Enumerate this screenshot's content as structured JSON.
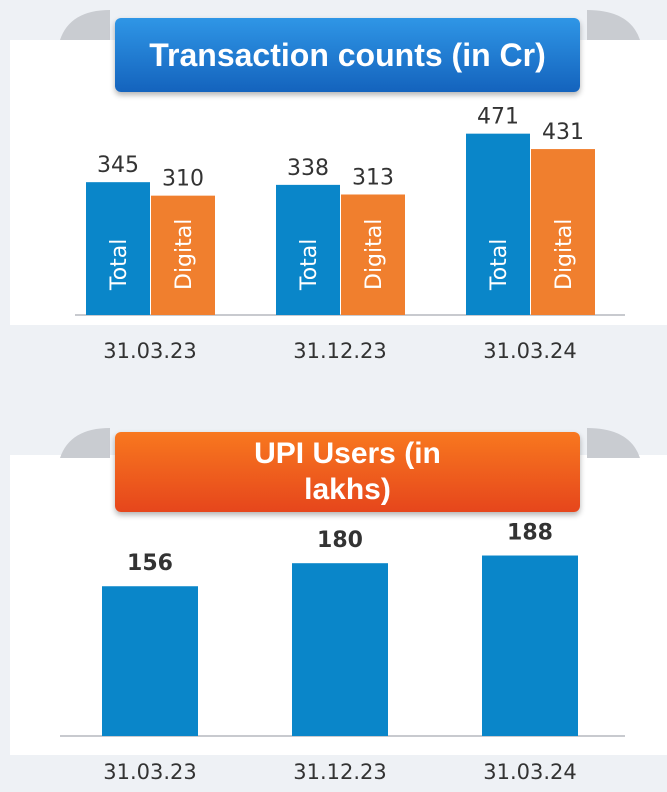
{
  "chart_data": [
    {
      "type": "bar",
      "title": "Transaction counts (in Cr)",
      "categories": [
        "31.03.23",
        "31.12.23",
        "31.03.24"
      ],
      "series": [
        {
          "name": "Total",
          "color": "#0a86c9",
          "values": [
            345,
            338,
            471
          ]
        },
        {
          "name": "Digital",
          "color": "#f07f2e",
          "values": [
            310,
            313,
            431
          ]
        }
      ]
    },
    {
      "type": "bar",
      "title": "UPI Users (in lakhs)",
      "categories": [
        "31.03.23",
        "31.12.23",
        "31.03.24"
      ],
      "values": [
        156,
        180,
        188
      ],
      "color": "#0a86c9"
    }
  ]
}
